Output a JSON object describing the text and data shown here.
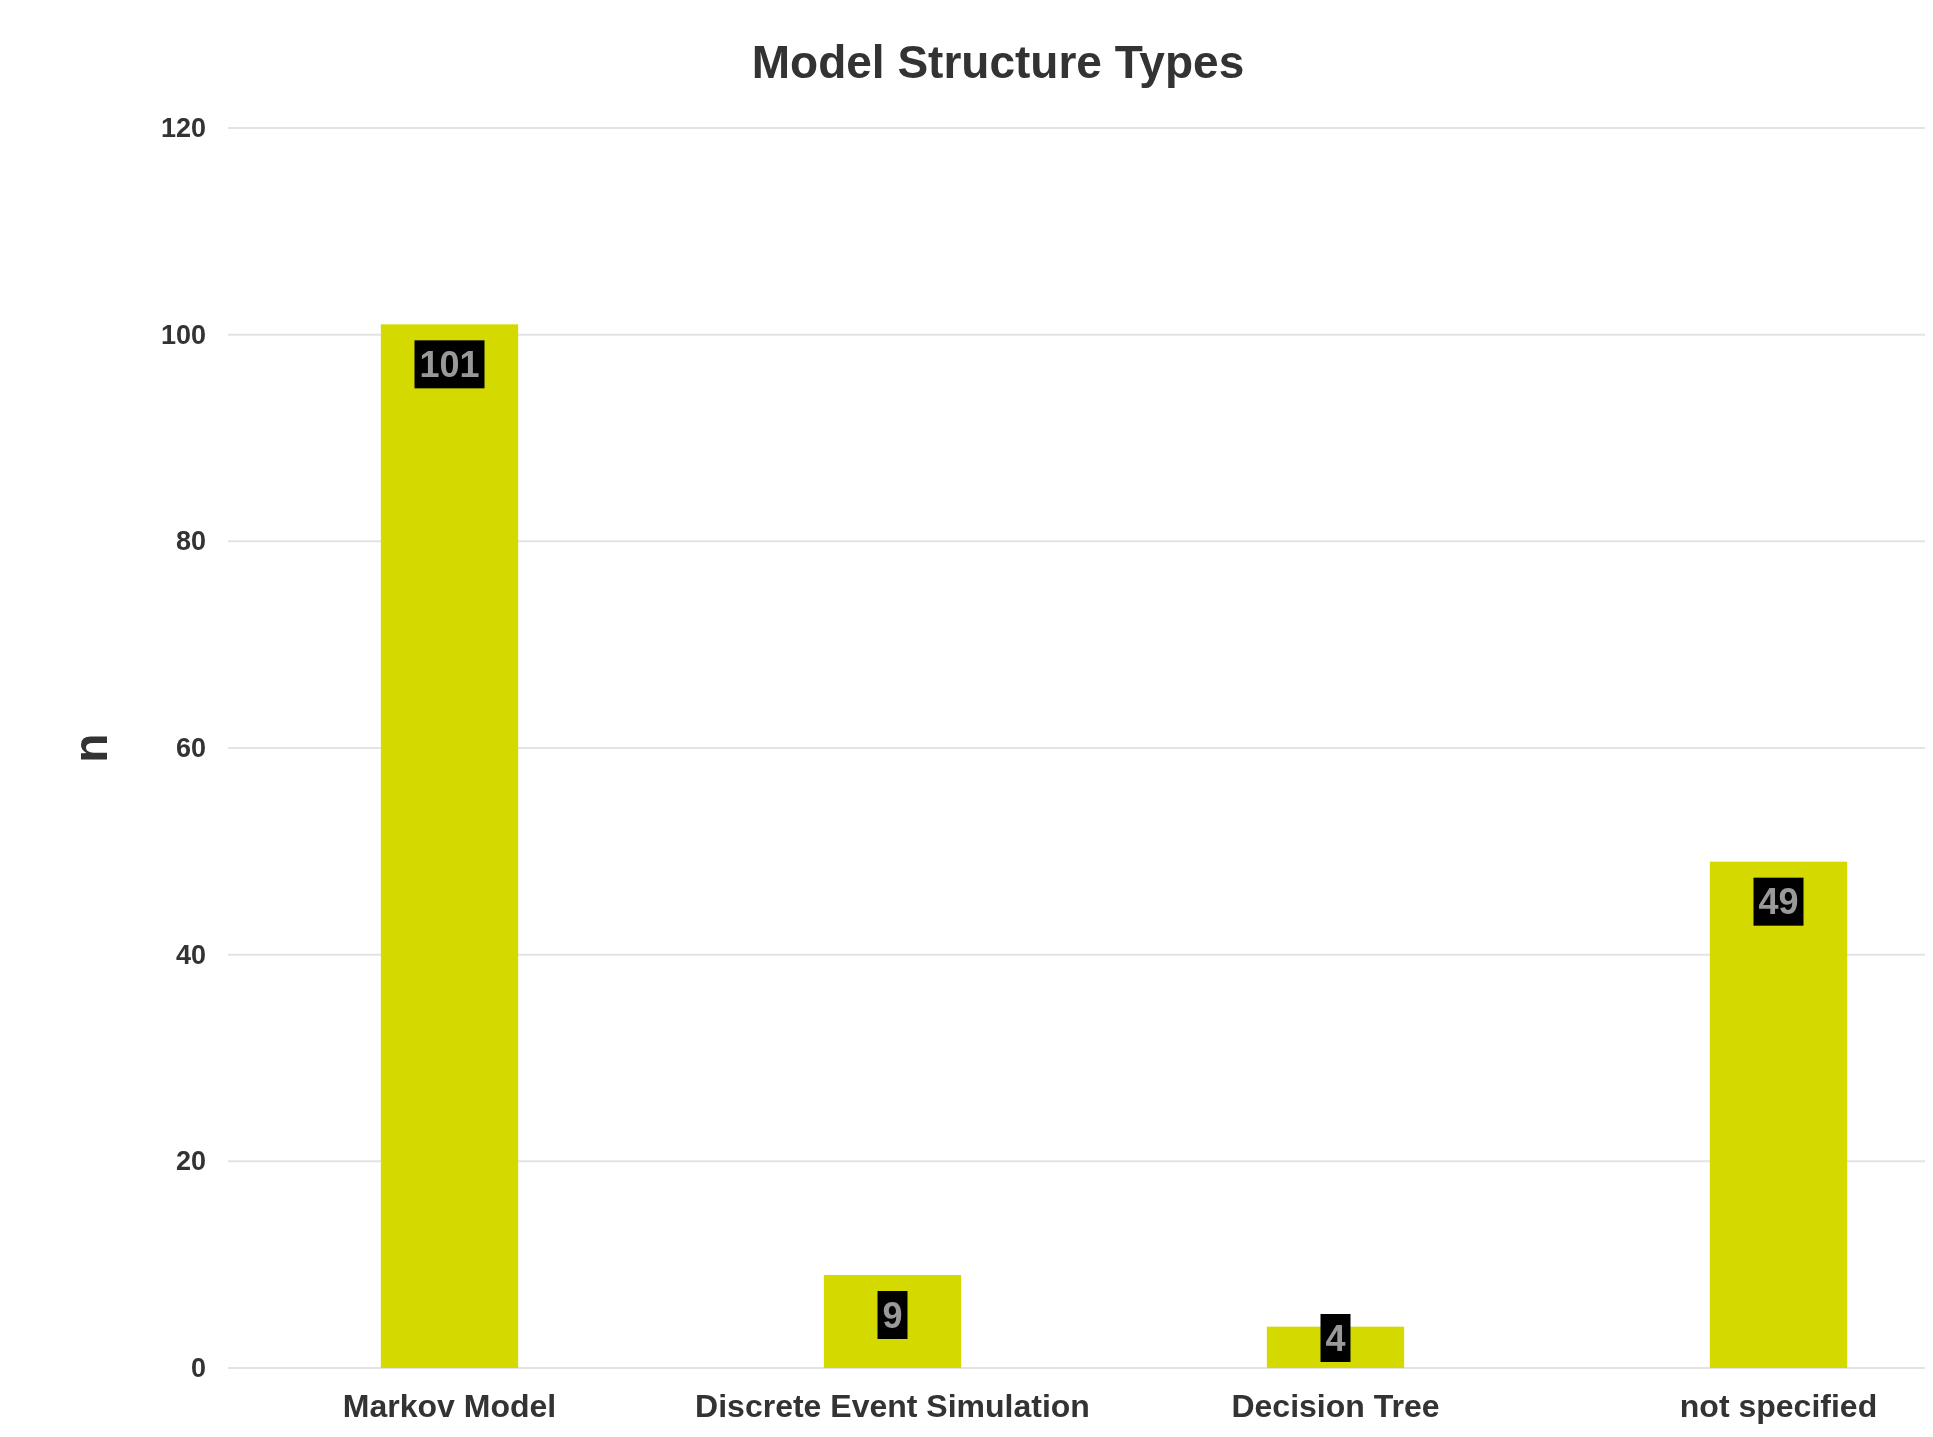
{
  "chart_data": {
    "type": "bar",
    "title": "Model Structure Types",
    "ylabel": "n",
    "categories": [
      "Markov Model",
      "Discrete Event Simulation",
      "Decision Tree",
      "not specified"
    ],
    "values": [
      101,
      9,
      4,
      49
    ],
    "color": "#d4da00",
    "ylim": [
      0,
      120
    ],
    "yticks": [
      0,
      20,
      40,
      60,
      80,
      100,
      120
    ],
    "grid": "y",
    "data_labels": true
  }
}
